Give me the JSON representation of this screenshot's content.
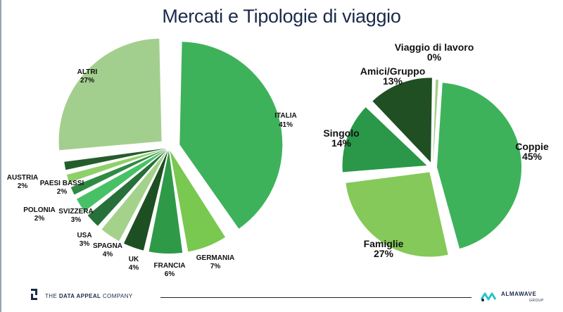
{
  "title": "Mercati e Tipologie di viaggio",
  "chart_data": [
    {
      "type": "pie",
      "series": [
        {
          "label": "ITALIA",
          "value": 41,
          "display": "41%",
          "color": "#3db25b"
        },
        {
          "label": "GERMANIA",
          "value": 7,
          "display": "7%",
          "color": "#79c84f"
        },
        {
          "label": "FRANCIA",
          "value": 6,
          "display": "6%",
          "color": "#2e9a48"
        },
        {
          "label": "UK",
          "value": 4,
          "display": "4%",
          "color": "#1e4f22"
        },
        {
          "label": "SPAGNA",
          "value": 4,
          "display": "4%",
          "color": "#a4d28a"
        },
        {
          "label": "USA",
          "value": 3,
          "display": "3%",
          "color": "#28703a"
        },
        {
          "label": "SVIZZERA",
          "value": 3,
          "display": "3%",
          "color": "#48c166"
        },
        {
          "label": "POLONIA",
          "value": 2,
          "display": "2%",
          "color": "#2f8a43"
        },
        {
          "label": "PAESI BASSI",
          "value": 2,
          "display": "2%",
          "color": "#8fd06a"
        },
        {
          "label": "AUSTRIA",
          "value": 2,
          "display": "2%",
          "color": "#245d2c"
        },
        {
          "label": "ALTRI",
          "value": 27,
          "display": "27%",
          "color": "#a3cf8e"
        }
      ]
    },
    {
      "type": "pie",
      "series": [
        {
          "label": "Coppie",
          "value": 45,
          "display": "45%",
          "color": "#3db25b"
        },
        {
          "label": "Famiglie",
          "value": 27,
          "display": "27%",
          "color": "#84c95a"
        },
        {
          "label": "Singolo",
          "value": 14,
          "display": "14%",
          "color": "#2a9848"
        },
        {
          "label": "Amici/Gruppo",
          "value": 13,
          "display": "13%",
          "color": "#1f4f23"
        },
        {
          "label": "Viaggio di lavoro",
          "value": 0,
          "display": "0%",
          "color": "#9fcf86"
        }
      ]
    }
  ],
  "footer": {
    "left_brand_prefix": "THE ",
    "left_brand_bold": "DATA APPEAL",
    "left_brand_suffix": " COMPANY",
    "right_brand": "ALMAWAVE",
    "right_brand_sub": "GROUP"
  }
}
